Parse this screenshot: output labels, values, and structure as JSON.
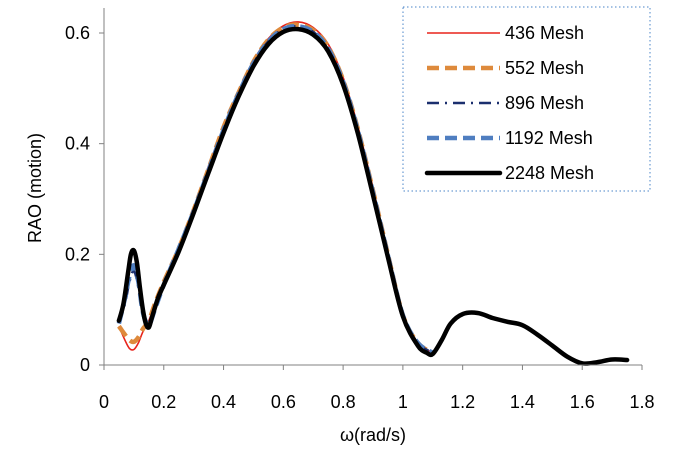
{
  "chart_data": {
    "type": "line",
    "title": "",
    "xlabel": "ω(rad/s)",
    "ylabel": "RAO  (motion)",
    "xlim": [
      0,
      1.8
    ],
    "ylim": [
      0,
      0.6
    ],
    "x_ticks": [
      "0",
      "0.2",
      "0.4",
      "0.6",
      "0.8",
      "1",
      "1.2",
      "1.4",
      "1.6",
      "1.8"
    ],
    "y_ticks": [
      "0",
      "0.2",
      "0.4",
      "0.6"
    ],
    "grid": false,
    "legend_position": "top-right",
    "series": [
      {
        "name": "436  Mesh",
        "color": "#e8231b",
        "style": "solid-thin",
        "x": [
          0.05,
          0.07,
          0.085,
          0.1,
          0.115,
          0.13,
          0.15,
          0.17,
          0.2,
          0.25,
          0.3,
          0.35,
          0.4,
          0.45,
          0.5,
          0.55,
          0.6,
          0.65,
          0.7,
          0.75,
          0.8,
          0.85,
          0.9,
          0.95,
          1.0,
          1.05,
          1.1
        ],
        "y": [
          0.07,
          0.045,
          0.03,
          0.028,
          0.04,
          0.06,
          0.08,
          0.11,
          0.15,
          0.21,
          0.28,
          0.36,
          0.43,
          0.495,
          0.55,
          0.59,
          0.613,
          0.62,
          0.61,
          0.58,
          0.52,
          0.43,
          0.32,
          0.2,
          0.09,
          0.04,
          0.022
        ]
      },
      {
        "name": "552  Mesh",
        "color": "#de8a3c",
        "style": "dashed-thick",
        "x": [
          0.05,
          0.07,
          0.085,
          0.1,
          0.115,
          0.13,
          0.15,
          0.17,
          0.2,
          0.25,
          0.3,
          0.35,
          0.4,
          0.45,
          0.5,
          0.55,
          0.6,
          0.65,
          0.7,
          0.75,
          0.8,
          0.85,
          0.9,
          0.95,
          1.0,
          1.05,
          1.1
        ],
        "y": [
          0.07,
          0.055,
          0.045,
          0.042,
          0.05,
          0.065,
          0.08,
          0.11,
          0.15,
          0.21,
          0.28,
          0.355,
          0.43,
          0.492,
          0.548,
          0.588,
          0.61,
          0.615,
          0.605,
          0.575,
          0.515,
          0.425,
          0.315,
          0.2,
          0.09,
          0.04,
          0.022
        ]
      },
      {
        "name": "896  Mesh",
        "color": "#1b2f6e",
        "style": "dash-dot",
        "x": [
          0.05,
          0.07,
          0.085,
          0.1,
          0.115,
          0.13,
          0.15,
          0.17,
          0.2,
          0.25,
          0.3,
          0.35,
          0.4,
          0.45,
          0.5,
          0.55,
          0.6,
          0.65,
          0.7,
          0.75,
          0.8,
          0.85,
          0.9,
          0.95,
          1.0,
          1.05,
          1.1
        ],
        "y": [
          0.075,
          0.11,
          0.15,
          0.17,
          0.14,
          0.09,
          0.072,
          0.1,
          0.145,
          0.21,
          0.278,
          0.352,
          0.425,
          0.49,
          0.545,
          0.585,
          0.607,
          0.612,
          0.602,
          0.572,
          0.512,
          0.422,
          0.312,
          0.198,
          0.09,
          0.04,
          0.022
        ]
      },
      {
        "name": "1192  Mesh",
        "color": "#4f7ec0",
        "style": "dashed-thick",
        "x": [
          0.05,
          0.07,
          0.085,
          0.1,
          0.115,
          0.13,
          0.15,
          0.17,
          0.2,
          0.25,
          0.3,
          0.35,
          0.4,
          0.45,
          0.5,
          0.55,
          0.6,
          0.65,
          0.7,
          0.75,
          0.8,
          0.85,
          0.9,
          0.95,
          1.0,
          1.05,
          1.1
        ],
        "y": [
          0.075,
          0.12,
          0.16,
          0.18,
          0.15,
          0.095,
          0.073,
          0.1,
          0.145,
          0.21,
          0.278,
          0.352,
          0.425,
          0.49,
          0.545,
          0.585,
          0.607,
          0.612,
          0.602,
          0.572,
          0.512,
          0.422,
          0.312,
          0.198,
          0.09,
          0.04,
          0.022
        ]
      },
      {
        "name": "2248  Mesh",
        "color": "#000000",
        "style": "solid-thick",
        "x": [
          0.05,
          0.065,
          0.08,
          0.09,
          0.1,
          0.11,
          0.12,
          0.13,
          0.14,
          0.15,
          0.16,
          0.18,
          0.2,
          0.25,
          0.3,
          0.35,
          0.4,
          0.45,
          0.5,
          0.55,
          0.6,
          0.65,
          0.7,
          0.75,
          0.8,
          0.85,
          0.9,
          0.95,
          1.0,
          1.05,
          1.08,
          1.1,
          1.13,
          1.16,
          1.2,
          1.25,
          1.3,
          1.35,
          1.4,
          1.45,
          1.5,
          1.55,
          1.6,
          1.65,
          1.7,
          1.75
        ],
        "y": [
          0.08,
          0.11,
          0.165,
          0.2,
          0.207,
          0.185,
          0.14,
          0.1,
          0.075,
          0.068,
          0.085,
          0.12,
          0.145,
          0.205,
          0.275,
          0.348,
          0.42,
          0.485,
          0.54,
          0.58,
          0.602,
          0.607,
          0.597,
          0.567,
          0.507,
          0.417,
          0.307,
          0.195,
          0.088,
          0.035,
          0.022,
          0.02,
          0.045,
          0.075,
          0.092,
          0.094,
          0.085,
          0.078,
          0.072,
          0.055,
          0.035,
          0.015,
          0.003,
          0.005,
          0.01,
          0.009
        ]
      }
    ]
  }
}
